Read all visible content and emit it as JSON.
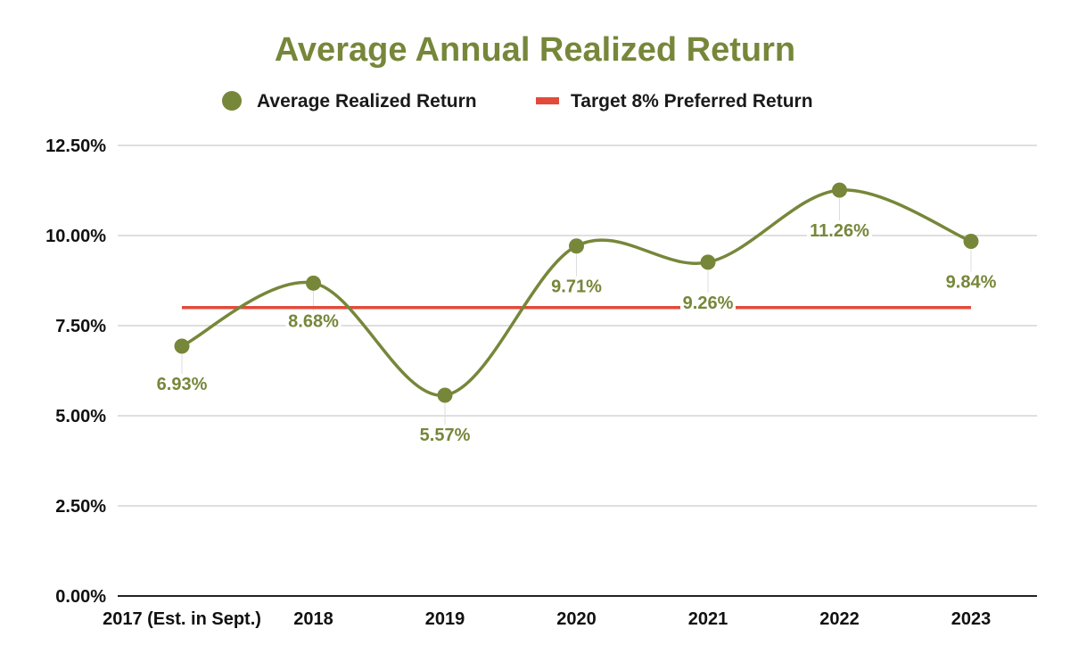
{
  "chart_data": {
    "type": "line",
    "title": "Average Annual Realized Return",
    "categories": [
      "2017 (Est. in Sept.)",
      "2018",
      "2019",
      "2020",
      "2021",
      "2022",
      "2023"
    ],
    "series": [
      {
        "name": "Average Realized Return",
        "values": [
          6.93,
          8.68,
          5.57,
          9.71,
          9.26,
          11.26,
          9.84
        ],
        "labels": [
          "6.93%",
          "8.68%",
          "5.57%",
          "9.71%",
          "9.26%",
          "11.26%",
          "9.84%"
        ],
        "color": "#76873a",
        "style": "smooth-line-with-markers"
      },
      {
        "name": "Target 8% Preferred Return",
        "values": [
          8,
          8,
          8,
          8,
          8,
          8,
          8
        ],
        "color": "#e24b3b",
        "style": "line"
      }
    ],
    "yticks": [
      "0.00%",
      "2.50%",
      "5.00%",
      "7.50%",
      "10.00%",
      "12.50%"
    ],
    "ylim": [
      0,
      12.5
    ],
    "grid": true,
    "legend": "top-center"
  },
  "colors": {
    "title": "#76873a",
    "grid": "#cccccc",
    "axis": "#222222"
  }
}
